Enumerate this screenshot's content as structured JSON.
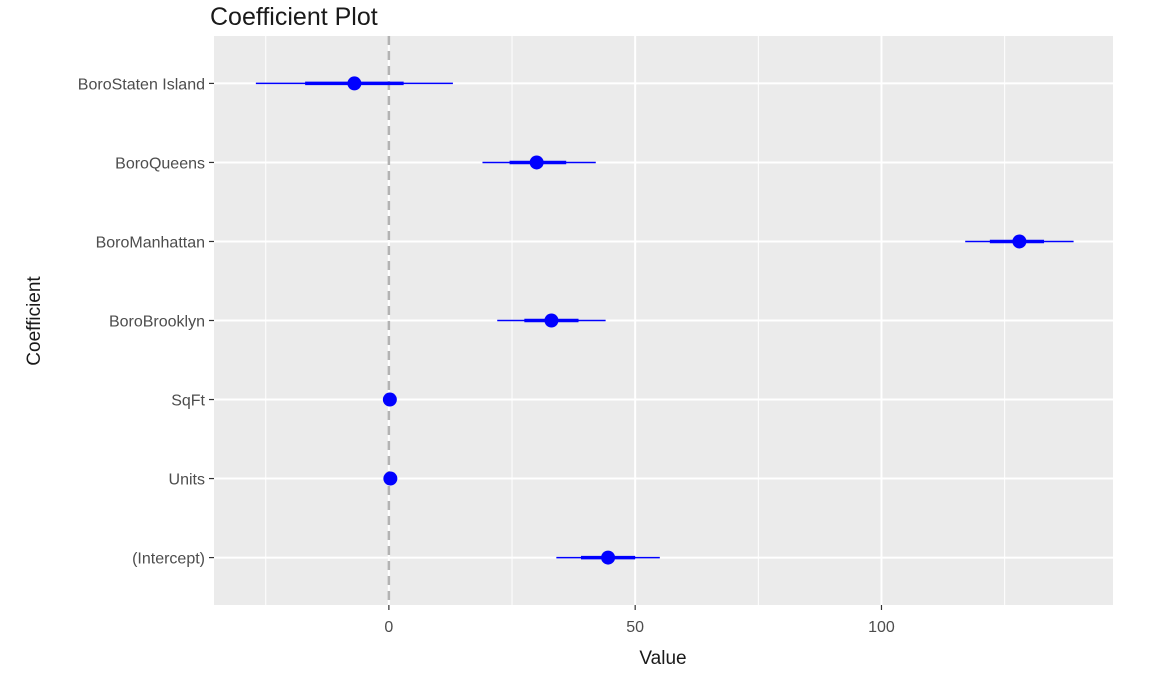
{
  "chart_data": {
    "type": "coefficient-plot",
    "title": "Coefficient Plot",
    "xlabel": "Value",
    "ylabel": "Coefficient",
    "xlim": [
      -35.5,
      147
    ],
    "x_ticks": [
      0,
      50,
      100
    ],
    "x_minor_ticks": [
      -25,
      25,
      75,
      125
    ],
    "reference_line": 0,
    "grid": true,
    "point_color": "#0000ff",
    "panel_background": "#ebebeb",
    "reference_line_color": "#b3b3b3",
    "categories": [
      "BoroStaten Island",
      "BoroQueens",
      "BoroManhattan",
      "BoroBrooklyn",
      "SqFt",
      "Units",
      "(Intercept)"
    ],
    "points": [
      {
        "label": "BoroStaten Island",
        "value": -7,
        "inner": [
          -17,
          3
        ],
        "outer": [
          -27,
          13
        ]
      },
      {
        "label": "BoroQueens",
        "value": 30,
        "inner": [
          24.5,
          36
        ],
        "outer": [
          19,
          42
        ]
      },
      {
        "label": "BoroManhattan",
        "value": 128,
        "inner": [
          122,
          133
        ],
        "outer": [
          117,
          139
        ]
      },
      {
        "label": "BoroBrooklyn",
        "value": 33,
        "inner": [
          27.5,
          38.5
        ],
        "outer": [
          22,
          44
        ]
      },
      {
        "label": "SqFt",
        "value": 0.2,
        "inner": [
          0.2,
          0.2
        ],
        "outer": [
          0.2,
          0.2
        ]
      },
      {
        "label": "Units",
        "value": 0.3,
        "inner": [
          0.3,
          0.3
        ],
        "outer": [
          0.3,
          0.3
        ]
      },
      {
        "label": "(Intercept)",
        "value": 44.5,
        "inner": [
          39,
          50
        ],
        "outer": [
          34,
          55
        ]
      }
    ]
  }
}
